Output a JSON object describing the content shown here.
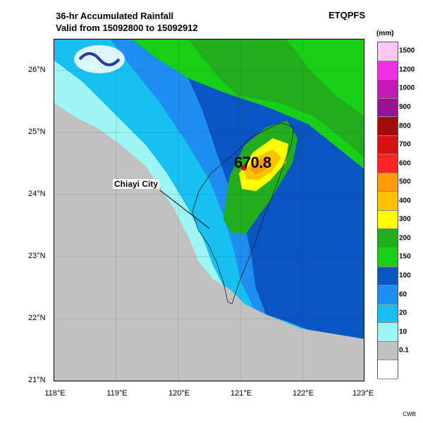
{
  "header": {
    "title_line1": "36-hr Accumulated Rainfall",
    "title_line2": "Valid from 15092800 to 15092912",
    "product": "ETQPFS"
  },
  "map": {
    "lat_labels": [
      "26°N",
      "25°N",
      "24°N",
      "23°N",
      "22°N",
      "21°N"
    ],
    "lon_labels": [
      "118°E",
      "119°E",
      "120°E",
      "121°E",
      "122°E",
      "123°E"
    ],
    "annotation_city": "Chiayi City",
    "peak_value": "670.8"
  },
  "legend": {
    "unit": "(mm)",
    "levels": [
      {
        "label": "1500",
        "color": "#fbc8f5"
      },
      {
        "label": "1200",
        "color": "#f02ee4"
      },
      {
        "label": "1000",
        "color": "#c21bb4"
      },
      {
        "label": "900",
        "color": "#9a1196"
      },
      {
        "label": "800",
        "color": "#a30a0a"
      },
      {
        "label": "700",
        "color": "#d81010"
      },
      {
        "label": "600",
        "color": "#fe2424"
      },
      {
        "label": "500",
        "color": "#fe9c0a"
      },
      {
        "label": "400",
        "color": "#fec300"
      },
      {
        "label": "300",
        "color": "#fefe00"
      },
      {
        "label": "200",
        "color": "#22ad1e"
      },
      {
        "label": "150",
        "color": "#17cf17"
      },
      {
        "label": "100",
        "color": "#0a55c4"
      },
      {
        "label": "60",
        "color": "#1f8ef2"
      },
      {
        "label": "20",
        "color": "#16c0f0"
      },
      {
        "label": "10",
        "color": "#9df6f3"
      },
      {
        "label": "0.1",
        "color": "#c1c1c1"
      },
      {
        "label": "",
        "color": "#ffffff"
      }
    ]
  },
  "footer": {
    "credit": "CWB"
  }
}
